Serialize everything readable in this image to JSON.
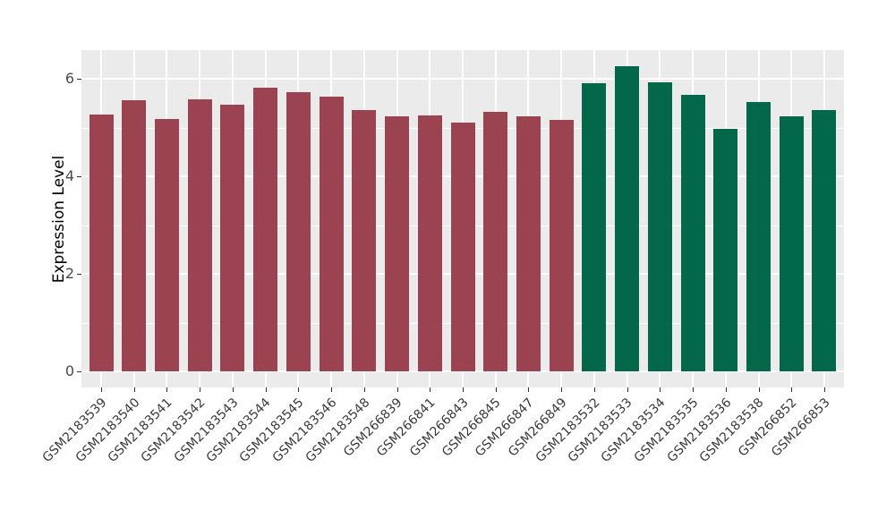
{
  "figure": {
    "background": "#ffffff",
    "panel_background": "#EBEBEB",
    "grid_color": "#ffffff",
    "tick_mark_color": "#333333",
    "axis_text_color": "#4a4a4a",
    "axis_title_color": "#000000"
  },
  "chart_data": {
    "type": "bar",
    "title": "",
    "xlabel": "",
    "ylabel": "Expression Level",
    "ylim": [
      0,
      6.6
    ],
    "yticks": [
      0,
      2,
      4,
      6
    ],
    "yticks_minor": [
      1,
      3,
      5
    ],
    "grid": true,
    "legend": false,
    "categories": [
      "GSM2183539",
      "GSM2183540",
      "GSM2183541",
      "GSM2183542",
      "GSM2183543",
      "GSM2183544",
      "GSM2183545",
      "GSM2183546",
      "GSM2183548",
      "GSM266839",
      "GSM266841",
      "GSM266843",
      "GSM266845",
      "GSM266847",
      "GSM266849",
      "GSM2183532",
      "GSM2183533",
      "GSM2183534",
      "GSM2183535",
      "GSM2183536",
      "GSM2183538",
      "GSM266852",
      "GSM266853"
    ],
    "values": [
      5.27,
      5.56,
      5.17,
      5.58,
      5.47,
      5.82,
      5.72,
      5.63,
      5.35,
      5.23,
      5.25,
      5.1,
      5.33,
      5.23,
      5.15,
      5.9,
      6.26,
      5.92,
      5.67,
      4.97,
      5.53,
      5.23,
      5.35
    ],
    "bar_group_index": [
      0,
      0,
      0,
      0,
      0,
      0,
      0,
      0,
      0,
      0,
      0,
      0,
      0,
      0,
      0,
      1,
      1,
      1,
      1,
      1,
      1,
      1,
      1
    ],
    "group_colors": [
      "#9C4351",
      "#03684A"
    ]
  }
}
